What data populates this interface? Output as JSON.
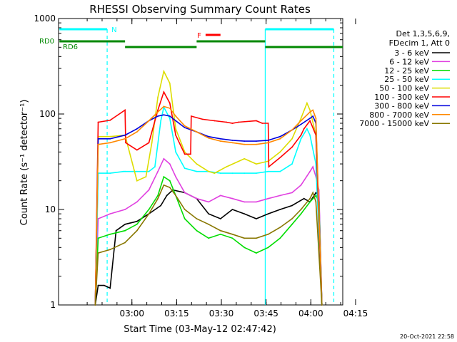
{
  "chart_data": {
    "type": "line",
    "title": "RHESSI Observing Summary Count Rates",
    "xlabel": "Start Time (03-May-12 02:47:42)",
    "ylabel": "Count Rate (s⁻¹ detector⁻¹)",
    "yscale": "log",
    "ylim": [
      1,
      1000
    ],
    "xlim": [
      -12.3,
      83
    ],
    "x_unit": "minutes after 02:47:42",
    "y_ticks": [
      1,
      10,
      100,
      1000
    ],
    "x_ticks": [
      {
        "t": 12.3,
        "label": "03:00"
      },
      {
        "t": 27.3,
        "label": "03:15"
      },
      {
        "t": 42.3,
        "label": "03:30"
      },
      {
        "t": 57.3,
        "label": "03:45"
      },
      {
        "t": 72.3,
        "label": "04:00"
      },
      {
        "t": 87.3,
        "label": "04:15"
      }
    ],
    "legend_header": [
      "Det 1,3,5,6,9,",
      "FDecim 1, Att 0"
    ],
    "legend_position": "right",
    "series": [
      {
        "name": "3 - 6 keV",
        "color": "#000000",
        "points": [
          [
            0,
            1
          ],
          [
            1,
            1.6
          ],
          [
            3,
            1.6
          ],
          [
            5,
            1.5
          ],
          [
            7,
            6
          ],
          [
            10,
            7
          ],
          [
            14,
            7.5
          ],
          [
            18,
            9
          ],
          [
            22,
            11
          ],
          [
            24,
            14
          ],
          [
            26,
            16
          ],
          [
            30,
            15
          ],
          [
            34,
            13
          ],
          [
            38,
            9
          ],
          [
            42,
            8
          ],
          [
            46,
            10
          ],
          [
            50,
            9
          ],
          [
            54,
            8
          ],
          [
            58,
            9
          ],
          [
            62,
            10
          ],
          [
            66,
            11
          ],
          [
            70,
            13
          ],
          [
            72,
            12
          ],
          [
            74,
            15
          ],
          [
            75,
            14
          ],
          [
            76,
            1
          ]
        ]
      },
      {
        "name": "6 - 12 keV",
        "color": "#e040e0",
        "points": [
          [
            0,
            1
          ],
          [
            1,
            8
          ],
          [
            5,
            9
          ],
          [
            10,
            10
          ],
          [
            14,
            12
          ],
          [
            18,
            16
          ],
          [
            21,
            25
          ],
          [
            23,
            34
          ],
          [
            25,
            30
          ],
          [
            27,
            22
          ],
          [
            30,
            15
          ],
          [
            34,
            13
          ],
          [
            38,
            12
          ],
          [
            42,
            14
          ],
          [
            46,
            13
          ],
          [
            50,
            12
          ],
          [
            54,
            12
          ],
          [
            58,
            13
          ],
          [
            62,
            14
          ],
          [
            66,
            15
          ],
          [
            69,
            18
          ],
          [
            72,
            25
          ],
          [
            73,
            28
          ],
          [
            74,
            22
          ],
          [
            75,
            16
          ],
          [
            76,
            1
          ]
        ]
      },
      {
        "name": "12 - 25 keV",
        "color": "#00dd00",
        "points": [
          [
            0,
            1
          ],
          [
            1,
            5
          ],
          [
            5,
            5.5
          ],
          [
            10,
            6
          ],
          [
            14,
            7
          ],
          [
            18,
            10
          ],
          [
            21,
            14
          ],
          [
            23,
            22
          ],
          [
            25,
            20
          ],
          [
            27,
            14
          ],
          [
            30,
            8
          ],
          [
            34,
            6
          ],
          [
            38,
            5
          ],
          [
            42,
            5.5
          ],
          [
            46,
            5
          ],
          [
            50,
            4
          ],
          [
            54,
            3.5
          ],
          [
            58,
            4
          ],
          [
            62,
            5
          ],
          [
            66,
            7
          ],
          [
            69,
            9
          ],
          [
            72,
            12
          ],
          [
            74,
            14
          ],
          [
            75,
            12
          ],
          [
            76,
            1
          ]
        ]
      },
      {
        "name": "25 - 50 keV",
        "color": "#00ffff",
        "points": [
          [
            0,
            1
          ],
          [
            1,
            24
          ],
          [
            5,
            24
          ],
          [
            9.5,
            25
          ],
          [
            10,
            25
          ],
          [
            14,
            25
          ],
          [
            18,
            25
          ],
          [
            20,
            28
          ],
          [
            22,
            85
          ],
          [
            23,
            118
          ],
          [
            25,
            90
          ],
          [
            27,
            40
          ],
          [
            30,
            27
          ],
          [
            34,
            25
          ],
          [
            38,
            25
          ],
          [
            42,
            24
          ],
          [
            46,
            24
          ],
          [
            50,
            24
          ],
          [
            54,
            24
          ],
          [
            58,
            25
          ],
          [
            62,
            25
          ],
          [
            66,
            30
          ],
          [
            69,
            55
          ],
          [
            71,
            70
          ],
          [
            72,
            60
          ],
          [
            74,
            30
          ],
          [
            76,
            1
          ]
        ]
      },
      {
        "name": "50 - 100 keV",
        "color": "#dddd00",
        "points": [
          [
            0,
            1
          ],
          [
            1,
            58
          ],
          [
            5,
            58
          ],
          [
            10,
            60
          ],
          [
            14,
            20
          ],
          [
            17,
            22
          ],
          [
            19,
            50
          ],
          [
            21,
            150
          ],
          [
            23,
            280
          ],
          [
            25,
            210
          ],
          [
            27,
            70
          ],
          [
            30,
            40
          ],
          [
            34,
            30
          ],
          [
            38,
            25
          ],
          [
            40,
            24
          ],
          [
            44,
            28
          ],
          [
            50,
            34
          ],
          [
            54,
            30
          ],
          [
            58,
            32
          ],
          [
            62,
            40
          ],
          [
            66,
            55
          ],
          [
            69,
            90
          ],
          [
            71,
            130
          ],
          [
            72,
            110
          ],
          [
            74,
            60
          ],
          [
            76,
            1
          ]
        ]
      },
      {
        "name": "100 - 300 keV",
        "color": "#ff0000",
        "points": [
          [
            0,
            1
          ],
          [
            1,
            82
          ],
          [
            5,
            86
          ],
          [
            10,
            110
          ],
          [
            10.2,
            50
          ],
          [
            14,
            42
          ],
          [
            18,
            50
          ],
          [
            21,
            110
          ],
          [
            23,
            170
          ],
          [
            25,
            130
          ],
          [
            27,
            60
          ],
          [
            30,
            38
          ],
          [
            32,
            38
          ],
          [
            32.2,
            95
          ],
          [
            36,
            88
          ],
          [
            40,
            85
          ],
          [
            44,
            82
          ],
          [
            46,
            80
          ],
          [
            48,
            82
          ],
          [
            54,
            85
          ],
          [
            56,
            80
          ],
          [
            58,
            80
          ],
          [
            58.2,
            28
          ],
          [
            62,
            35
          ],
          [
            66,
            45
          ],
          [
            69,
            60
          ],
          [
            70,
            70
          ],
          [
            72,
            85
          ],
          [
            74,
            60
          ],
          [
            76,
            1
          ]
        ]
      },
      {
        "name": "300 - 800 keV",
        "color": "#0000dd",
        "points": [
          [
            0,
            1
          ],
          [
            1,
            55
          ],
          [
            5,
            55
          ],
          [
            10,
            60
          ],
          [
            14,
            70
          ],
          [
            18,
            85
          ],
          [
            21,
            95
          ],
          [
            23,
            98
          ],
          [
            25,
            95
          ],
          [
            27,
            85
          ],
          [
            30,
            72
          ],
          [
            34,
            65
          ],
          [
            38,
            58
          ],
          [
            42,
            55
          ],
          [
            46,
            53
          ],
          [
            50,
            52
          ],
          [
            54,
            52
          ],
          [
            58,
            53
          ],
          [
            62,
            58
          ],
          [
            66,
            68
          ],
          [
            69,
            78
          ],
          [
            72,
            90
          ],
          [
            73,
            95
          ],
          [
            74,
            80
          ],
          [
            76,
            1
          ]
        ]
      },
      {
        "name": "800 - 7000 keV",
        "color": "#ff8800",
        "points": [
          [
            0,
            1
          ],
          [
            1,
            48
          ],
          [
            5,
            50
          ],
          [
            10,
            55
          ],
          [
            14,
            65
          ],
          [
            18,
            85
          ],
          [
            21,
            105
          ],
          [
            23,
            120
          ],
          [
            25,
            115
          ],
          [
            27,
            95
          ],
          [
            30,
            75
          ],
          [
            34,
            65
          ],
          [
            38,
            56
          ],
          [
            42,
            52
          ],
          [
            46,
            50
          ],
          [
            50,
            48
          ],
          [
            54,
            48
          ],
          [
            58,
            50
          ],
          [
            62,
            55
          ],
          [
            66,
            68
          ],
          [
            69,
            85
          ],
          [
            72,
            105
          ],
          [
            73,
            110
          ],
          [
            74,
            90
          ],
          [
            76,
            1
          ]
        ]
      },
      {
        "name": "7000 - 15000 keV",
        "color": "#887700",
        "points": [
          [
            0,
            1
          ],
          [
            1,
            3.5
          ],
          [
            5,
            3.8
          ],
          [
            10,
            4.5
          ],
          [
            14,
            6
          ],
          [
            18,
            9
          ],
          [
            21,
            13
          ],
          [
            23,
            18
          ],
          [
            25,
            17
          ],
          [
            27,
            14
          ],
          [
            30,
            10
          ],
          [
            34,
            8
          ],
          [
            38,
            7
          ],
          [
            42,
            6
          ],
          [
            46,
            5.5
          ],
          [
            50,
            5
          ],
          [
            54,
            5
          ],
          [
            58,
            5.5
          ],
          [
            62,
            6.5
          ],
          [
            66,
            8
          ],
          [
            69,
            10
          ],
          [
            72,
            13
          ],
          [
            73,
            15
          ],
          [
            74,
            12
          ],
          [
            76,
            1
          ]
        ]
      }
    ],
    "annotations": {
      "N": {
        "label": "N",
        "color": "#00ffff",
        "segments": [
          [
            -12,
            4
          ],
          [
            57,
            80
          ]
        ]
      },
      "F": {
        "label": "F",
        "color": "#ff0000",
        "segments": [
          [
            37,
            42
          ]
        ]
      },
      "RD0": {
        "label": "RD0",
        "color": "#008800",
        "segments": [
          [
            -12,
            10
          ],
          [
            34,
            57
          ]
        ]
      },
      "RD6": {
        "label": "RD6",
        "color": "#008800",
        "segments": [
          [
            10,
            34
          ],
          [
            57,
            83
          ]
        ]
      }
    },
    "vertical_lines": [
      {
        "t": 4,
        "color": "#00ffff",
        "style": "dashed"
      },
      {
        "t": 57,
        "color": "#00ffff",
        "style": "solid"
      },
      {
        "t": 80,
        "color": "#00ffff",
        "style": "dashed"
      }
    ],
    "footer": "20-Oct-2021 22:58"
  }
}
